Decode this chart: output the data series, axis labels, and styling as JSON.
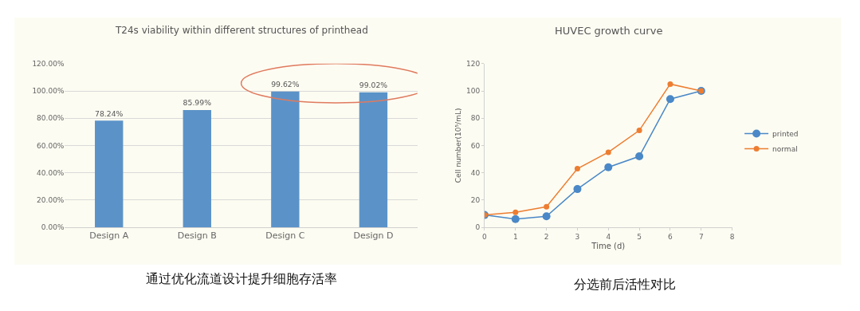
{
  "chart_data": [
    {
      "type": "bar",
      "title": "T24s viability within different structures of printhead",
      "categories": [
        "Design A",
        "Design B",
        "Design C",
        "Design D"
      ],
      "values": [
        78.24,
        85.99,
        99.62,
        99.02
      ],
      "color": "#5b93c8",
      "value_labels": [
        "78.24%",
        "85.99%",
        "99.62%",
        "99.02%"
      ],
      "ylim": [
        0,
        120
      ],
      "yticks": [
        {
          "value": 0,
          "label": "0.00%"
        },
        {
          "value": 20,
          "label": "20.00%"
        },
        {
          "value": 40,
          "label": "40.00%"
        },
        {
          "value": 60,
          "label": "60.00%"
        },
        {
          "value": 80,
          "label": "80.00%"
        },
        {
          "value": 100,
          "label": "100.00%"
        },
        {
          "value": 120,
          "label": "120.00%"
        }
      ],
      "grid": "y",
      "annotations": [
        "通过优化流道设计提升细胞存活率"
      ]
    },
    {
      "type": "line",
      "title": "HUVEC growth curve",
      "xlabel": "Time (d)",
      "ylabel": "Cell number(10⁵/mL)",
      "x": [
        0,
        1,
        2,
        3,
        4,
        5,
        6,
        7
      ],
      "series": [
        {
          "name": "printed",
          "color": "#4a88c7",
          "values": [
            9,
            6,
            8,
            28,
            44,
            52,
            94,
            100
          ]
        },
        {
          "name": "normal",
          "color": "#ed7d31",
          "values": [
            9,
            11,
            15,
            43,
            55,
            71,
            105,
            100
          ]
        }
      ],
      "xlim": [
        0,
        8
      ],
      "xticks": [
        0,
        1,
        2,
        3,
        4,
        5,
        6,
        7,
        8
      ],
      "ylim": [
        0,
        120
      ],
      "yticks": [
        0,
        20,
        40,
        60,
        80,
        100,
        120
      ],
      "marker": "circle",
      "legend": "right",
      "annotations": [
        "分选前后活性对比"
      ]
    }
  ]
}
